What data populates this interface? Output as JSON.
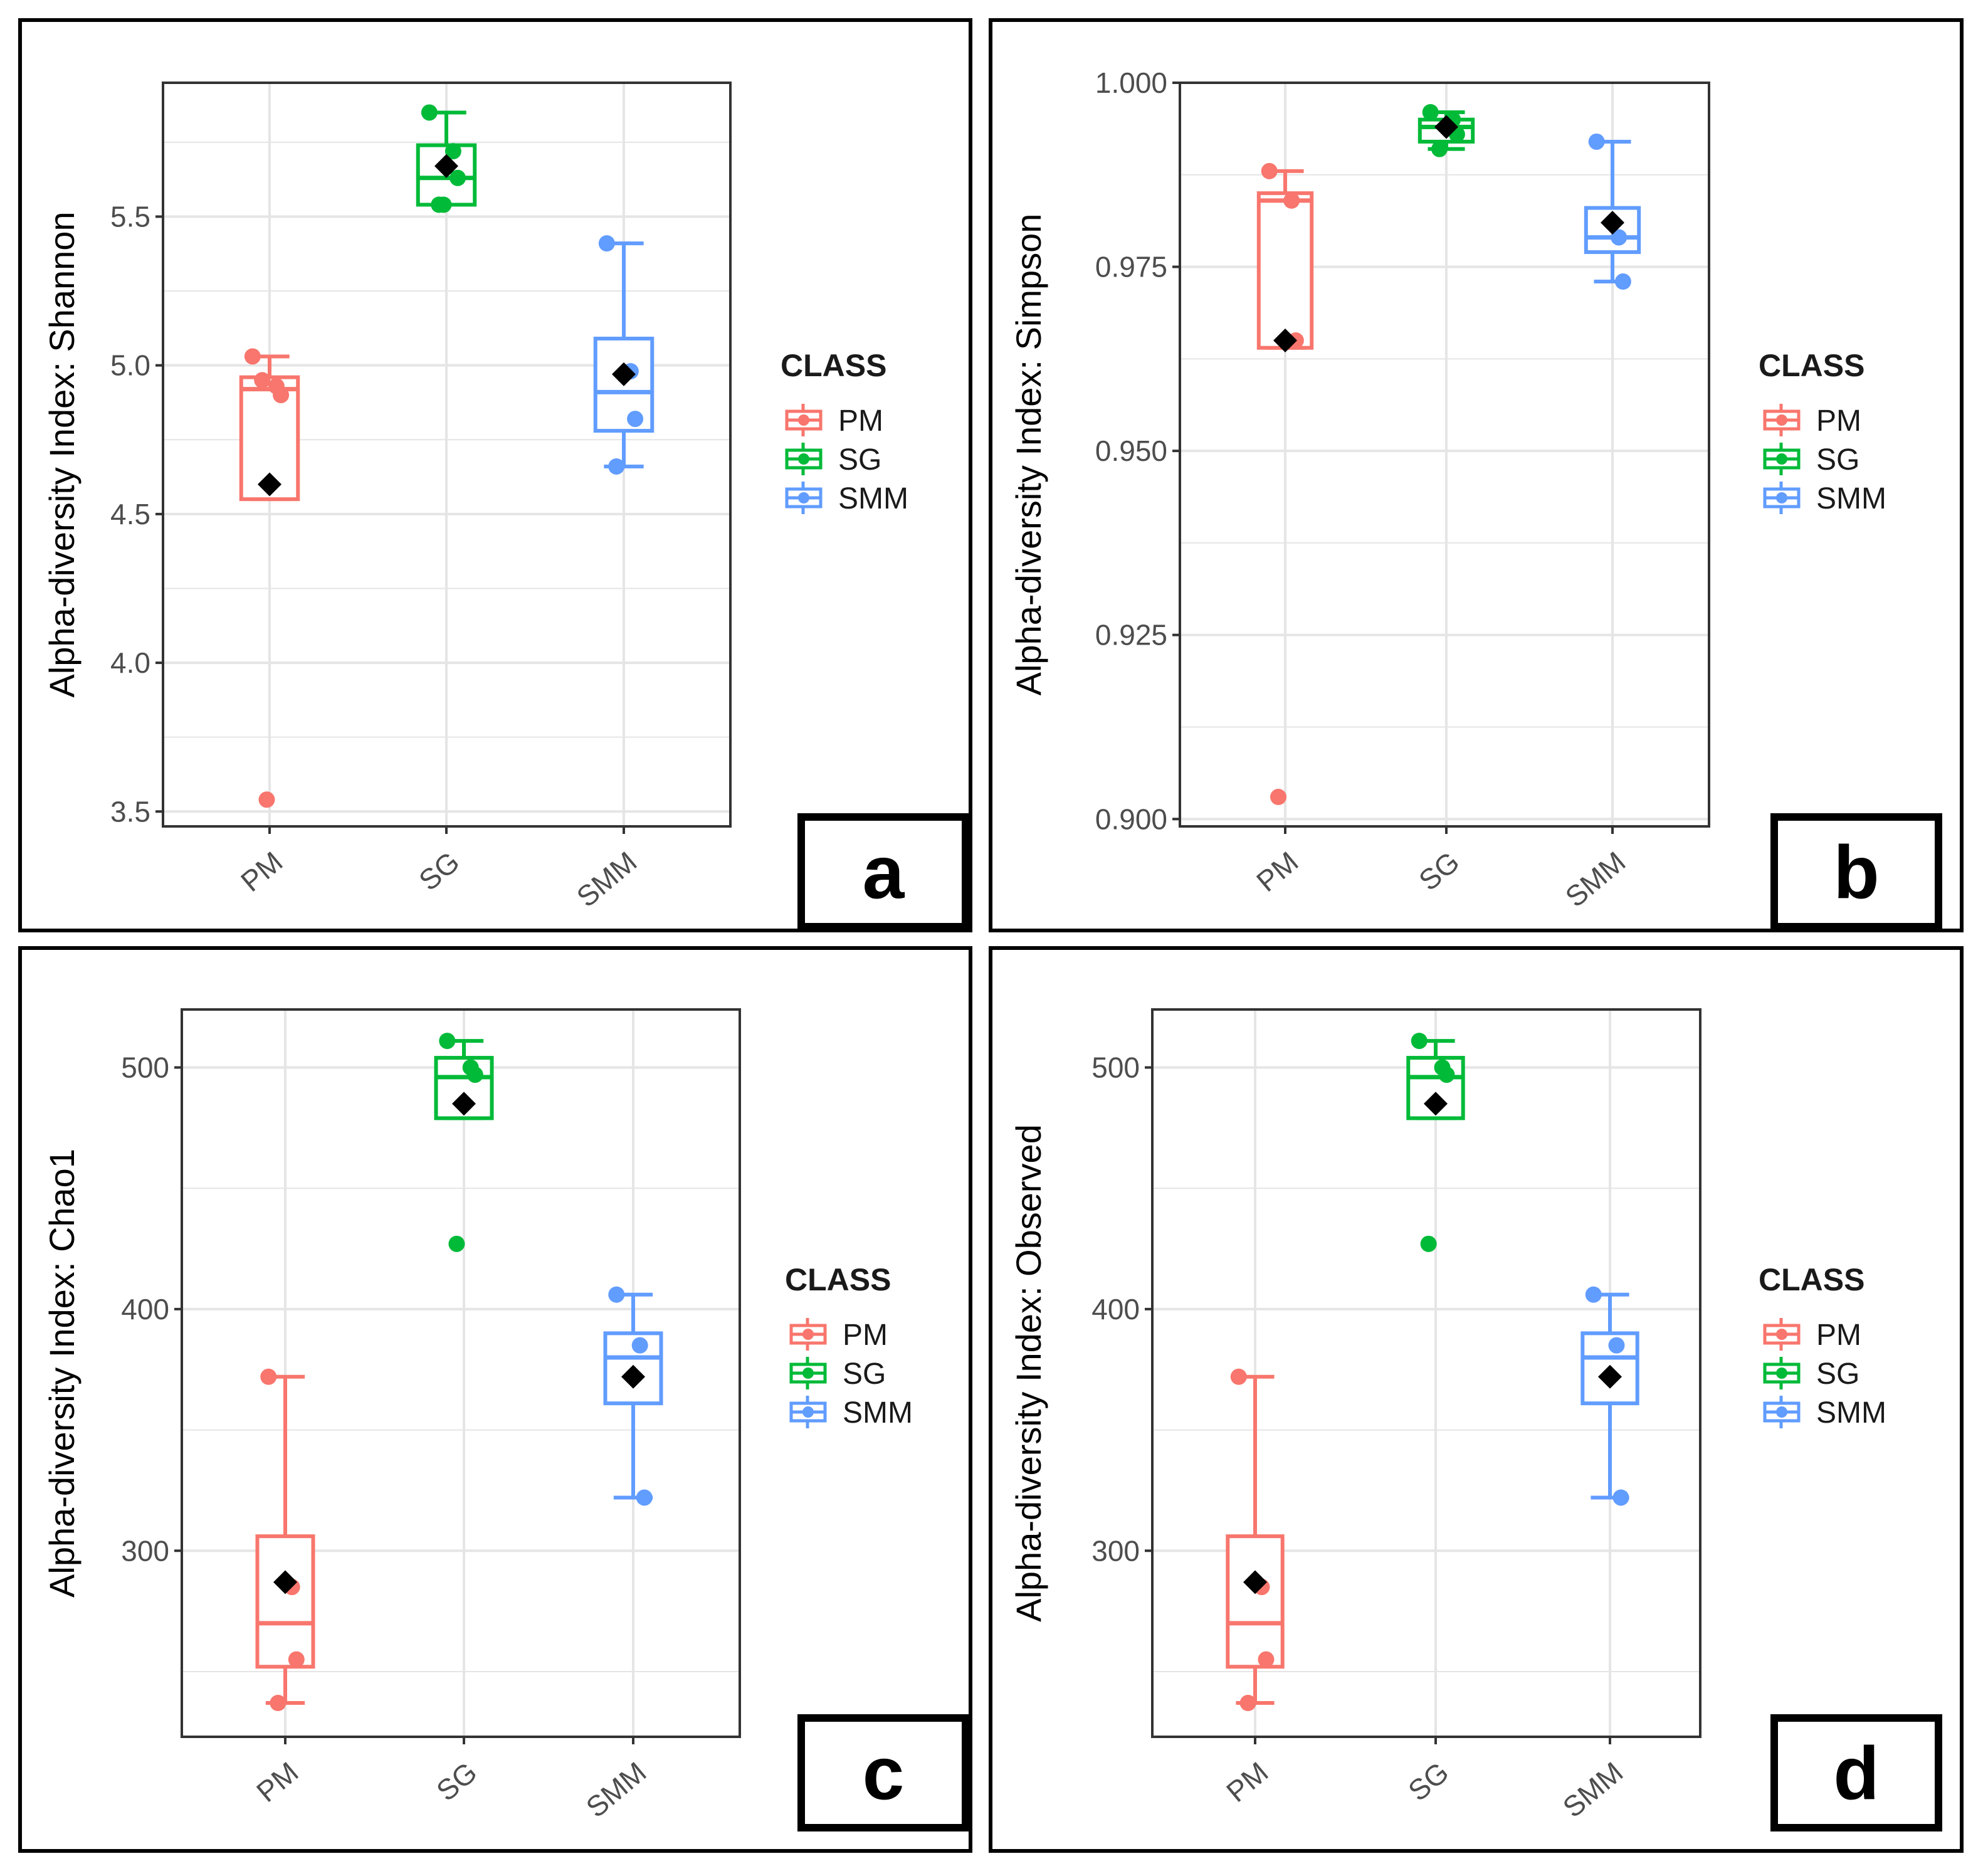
{
  "figure": {
    "legend_title": "CLASS"
  },
  "colors": {
    "PM": "#f8766d",
    "SG": "#00ba38",
    "SMM": "#619cff",
    "mean": "#000000",
    "grid": "#e5e5e5",
    "frame": "#000000"
  },
  "chart_data": [
    {
      "panel_label": "a",
      "type": "box",
      "ylabel": "Alpha-diversity Index: Shannon",
      "categories": [
        "PM",
        "SG",
        "SMM"
      ],
      "ylim": [
        3.45,
        5.95
      ],
      "yticks": [
        3.5,
        4.0,
        4.5,
        5.0,
        5.5
      ],
      "ytick_labels": [
        "3.5",
        "4.0",
        "4.5",
        "5.0",
        "5.5"
      ],
      "legend": [
        "PM",
        "SG",
        "SMM"
      ],
      "series": [
        {
          "name": "PM",
          "whisker_low": 4.55,
          "q1": 4.55,
          "median": 4.92,
          "q3": 4.96,
          "whisker_high": 5.03,
          "mean": 4.6,
          "outliers": [
            3.54
          ],
          "points": [
            5.03,
            4.93,
            4.9,
            4.95,
            3.54
          ]
        },
        {
          "name": "SG",
          "whisker_low": 5.54,
          "q1": 5.54,
          "median": 5.63,
          "q3": 5.74,
          "whisker_high": 5.85,
          "mean": 5.67,
          "outliers": [],
          "points": [
            5.85,
            5.72,
            5.63,
            5.54,
            5.54
          ]
        },
        {
          "name": "SMM",
          "whisker_low": 4.66,
          "q1": 4.78,
          "median": 4.91,
          "q3": 5.09,
          "whisker_high": 5.41,
          "mean": 4.97,
          "outliers": [],
          "points": [
            5.41,
            4.98,
            4.82,
            4.66
          ]
        }
      ]
    },
    {
      "panel_label": "b",
      "type": "box",
      "ylabel": "Alpha-diversity Index: Simpson",
      "categories": [
        "PM",
        "SG",
        "SMM"
      ],
      "ylim": [
        0.899,
        1.0
      ],
      "yticks": [
        0.9,
        0.925,
        0.95,
        0.975,
        1.0
      ],
      "ytick_labels": [
        "0.900",
        "0.925",
        "0.950",
        "0.975",
        "1.000"
      ],
      "legend": [
        "PM",
        "SG",
        "SMM"
      ],
      "series": [
        {
          "name": "PM",
          "whisker_low": 0.964,
          "q1": 0.964,
          "median": 0.984,
          "q3": 0.985,
          "whisker_high": 0.988,
          "mean": 0.965,
          "outliers": [
            0.903
          ],
          "points": [
            0.988,
            0.984,
            0.965,
            0.903
          ]
        },
        {
          "name": "SG",
          "whisker_low": 0.991,
          "q1": 0.992,
          "median": 0.994,
          "q3": 0.995,
          "whisker_high": 0.996,
          "mean": 0.994,
          "outliers": [],
          "points": [
            0.996,
            0.995,
            0.993,
            0.991
          ]
        },
        {
          "name": "SMM",
          "whisker_low": 0.973,
          "q1": 0.977,
          "median": 0.979,
          "q3": 0.983,
          "whisker_high": 0.992,
          "mean": 0.981,
          "outliers": [],
          "points": [
            0.992,
            0.979,
            0.973
          ]
        }
      ]
    },
    {
      "panel_label": "c",
      "type": "box",
      "ylabel": "Alpha-diversity Index: Chao1",
      "categories": [
        "PM",
        "SG",
        "SMM"
      ],
      "ylim": [
        223,
        524
      ],
      "yticks": [
        300,
        400,
        500
      ],
      "ytick_labels": [
        "300",
        "400",
        "500"
      ],
      "legend": [
        "PM",
        "SG",
        "SMM"
      ],
      "series": [
        {
          "name": "PM",
          "whisker_low": 237,
          "q1": 252,
          "median": 270,
          "q3": 306,
          "whisker_high": 372,
          "mean": 287,
          "outliers": [],
          "points": [
            372,
            285,
            255,
            237
          ]
        },
        {
          "name": "SG",
          "whisker_low": 479,
          "q1": 479,
          "median": 496,
          "q3": 504,
          "whisker_high": 511,
          "mean": 485,
          "outliers": [
            427
          ],
          "points": [
            511,
            500,
            497,
            427
          ]
        },
        {
          "name": "SMM",
          "whisker_low": 322,
          "q1": 361,
          "median": 380,
          "q3": 390,
          "whisker_high": 406,
          "mean": 372,
          "outliers": [],
          "points": [
            406,
            385,
            322
          ]
        }
      ]
    },
    {
      "panel_label": "d",
      "type": "box",
      "ylabel": "Alpha-diversity Index: Observed",
      "categories": [
        "PM",
        "SG",
        "SMM"
      ],
      "ylim": [
        223,
        524
      ],
      "yticks": [
        300,
        400,
        500
      ],
      "ytick_labels": [
        "300",
        "400",
        "500"
      ],
      "legend": [
        "PM",
        "SG",
        "SMM"
      ],
      "series": [
        {
          "name": "PM",
          "whisker_low": 237,
          "q1": 252,
          "median": 270,
          "q3": 306,
          "whisker_high": 372,
          "mean": 287,
          "outliers": [],
          "points": [
            372,
            285,
            255,
            237
          ]
        },
        {
          "name": "SG",
          "whisker_low": 479,
          "q1": 479,
          "median": 496,
          "q3": 504,
          "whisker_high": 511,
          "mean": 485,
          "outliers": [
            427
          ],
          "points": [
            511,
            500,
            497,
            427
          ]
        },
        {
          "name": "SMM",
          "whisker_low": 322,
          "q1": 361,
          "median": 380,
          "q3": 390,
          "whisker_high": 406,
          "mean": 372,
          "outliers": [],
          "points": [
            406,
            385,
            322
          ]
        }
      ]
    }
  ]
}
